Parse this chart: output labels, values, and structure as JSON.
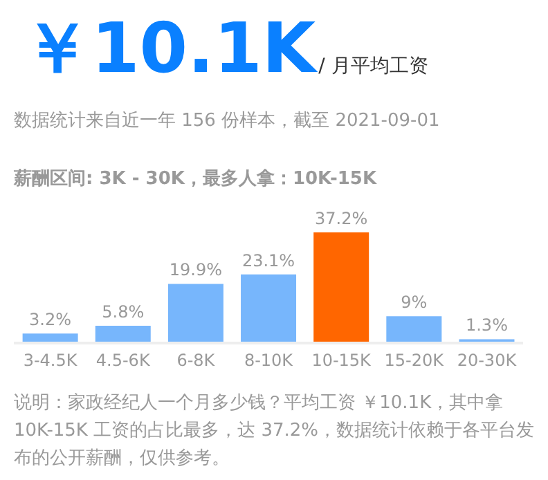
{
  "chart_data": {
    "type": "bar",
    "title": "￥10.1K",
    "subtitle": "/ 月平均工资",
    "annotations": [
      "数据统计来自近一年 156 份样本，截至 2021-09-01",
      "薪酬区间: 3K - 30K，最多人拿：10K-15K",
      "说明：家政经纪人一个月多少钱？平均工资 ￥10.1K，其中拿 10K-15K 工资的占比最多，达 37.2%，数据统计依赖于各平台发布的公开薪酬，仅供参考。"
    ],
    "categories": [
      "3-4.5K",
      "4.5-6K",
      "6-8K",
      "8-10K",
      "10-15K",
      "15-20K",
      "20-30K"
    ],
    "values": [
      3.2,
      5.8,
      19.9,
      23.1,
      37.2,
      9,
      1.3
    ],
    "value_labels": [
      "3.2%",
      "5.8%",
      "19.9%",
      "23.1%",
      "37.2%",
      "9%",
      "1.3%"
    ],
    "colors": [
      "#77b6fc",
      "#77b6fc",
      "#77b6fc",
      "#77b6fc",
      "#ff6600",
      "#77b6fc",
      "#77b6fc"
    ],
    "grid": false,
    "legend": false
  }
}
